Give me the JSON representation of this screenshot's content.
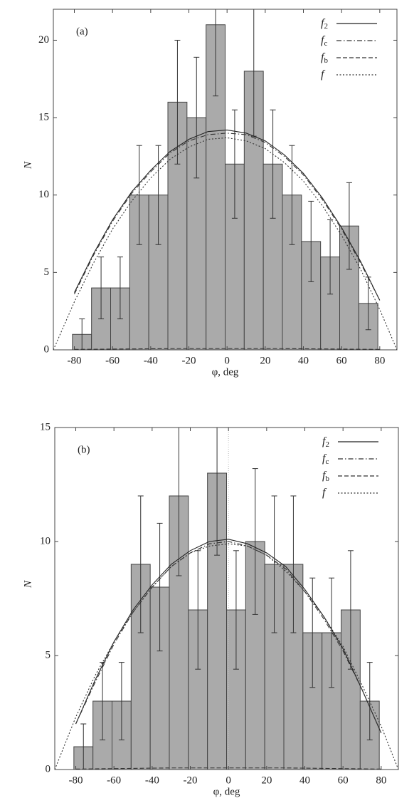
{
  "chart_data": [
    {
      "type": "histogram",
      "label": "(a)",
      "xlabel": "φ, deg",
      "ylabel": "N",
      "bins": [
        -81,
        -71,
        -61,
        -51,
        -41,
        -31,
        -21,
        -11,
        -1,
        9,
        19,
        29,
        39,
        49,
        59,
        69,
        79
      ],
      "values": [
        1,
        4,
        4,
        10,
        10,
        16,
        15,
        21,
        12,
        18,
        12,
        10,
        7,
        6,
        8,
        3
      ],
      "errors": [
        1.0,
        2.0,
        2.0,
        3.2,
        3.2,
        4.0,
        3.9,
        4.6,
        3.5,
        4.2,
        3.5,
        3.2,
        2.6,
        2.4,
        2.8,
        1.7
      ],
      "color": "#aaaaaa",
      "xlim": [
        -91,
        89
      ],
      "ylim": [
        0,
        22
      ],
      "xticks": [
        -80,
        -60,
        -40,
        -20,
        0,
        20,
        40,
        60,
        80
      ],
      "yticks": [
        0,
        5,
        10,
        15,
        20
      ],
      "legend": "upper right",
      "series": [
        {
          "name": "f2",
          "style": "solid",
          "color": "#222222",
          "x": [
            -80,
            -70,
            -60,
            -50,
            -40,
            -30,
            -20,
            -10,
            0,
            10,
            20,
            30,
            40,
            50,
            60,
            70,
            80
          ],
          "values": [
            3.7,
            6.2,
            8.4,
            10.2,
            11.6,
            12.8,
            13.6,
            14.1,
            14.2,
            14.0,
            13.5,
            12.6,
            11.4,
            9.8,
            7.9,
            5.7,
            3.2
          ]
        },
        {
          "name": "fc",
          "style": "dashdot",
          "color": "#333333",
          "x": [
            -80,
            -70,
            -60,
            -50,
            -40,
            -30,
            -20,
            -10,
            0,
            10,
            20,
            30,
            40,
            50,
            60,
            70,
            80
          ],
          "values": [
            3.6,
            6.1,
            8.3,
            10.1,
            11.5,
            12.7,
            13.5,
            13.9,
            14.0,
            13.9,
            13.4,
            12.5,
            11.3,
            9.7,
            7.8,
            5.6,
            3.2
          ]
        },
        {
          "name": "fb",
          "style": "dashed",
          "color": "#333333",
          "x": [
            -80,
            -70,
            -60,
            -50,
            -40,
            -30,
            -20,
            -10,
            0,
            10,
            20,
            30,
            40,
            50,
            60,
            70,
            80
          ],
          "values": [
            0.03,
            0.04,
            0.05,
            0.06,
            0.07,
            0.08,
            0.08,
            0.08,
            0.08,
            0.08,
            0.08,
            0.08,
            0.07,
            0.06,
            0.05,
            0.04,
            0.03
          ]
        },
        {
          "name": "f",
          "style": "dotted",
          "color": "#333333",
          "x": [
            -91,
            -80,
            -70,
            -60,
            -50,
            -40,
            -30,
            -20,
            -10,
            0,
            10,
            20,
            30,
            40,
            50,
            60,
            70,
            80,
            89
          ],
          "values": [
            0,
            3.1,
            5.6,
            7.8,
            9.6,
            11.1,
            12.3,
            13.1,
            13.6,
            13.7,
            13.5,
            13.0,
            12.1,
            10.9,
            9.3,
            7.4,
            5.2,
            2.6,
            0
          ]
        }
      ]
    },
    {
      "type": "histogram",
      "label": "(b)",
      "xlabel": "φ, deg",
      "ylabel": "N",
      "bins": [
        -81,
        -71,
        -61,
        -51,
        -41,
        -31,
        -21,
        -11,
        -1,
        9,
        19,
        29,
        39,
        49,
        59,
        69,
        79
      ],
      "values": [
        1,
        3,
        3,
        9,
        8,
        12,
        7,
        13,
        7,
        10,
        9,
        9,
        6,
        6,
        7,
        3
      ],
      "errors": [
        1.0,
        1.7,
        1.7,
        3.0,
        2.8,
        3.5,
        2.6,
        3.6,
        2.6,
        3.2,
        3.0,
        3.0,
        2.4,
        2.4,
        2.6,
        1.7
      ],
      "color": "#aaaaaa",
      "xlim": [
        -91,
        89
      ],
      "ylim": [
        0,
        15
      ],
      "xticks": [
        -80,
        -60,
        -40,
        -20,
        0,
        20,
        40,
        60,
        80
      ],
      "yticks": [
        0,
        5,
        10,
        15
      ],
      "legend": "upper right",
      "series": [
        {
          "name": "f2",
          "style": "solid",
          "color": "#222222",
          "x": [
            -80,
            -70,
            -60,
            -50,
            -40,
            -30,
            -20,
            -10,
            0,
            10,
            20,
            30,
            40,
            50,
            60,
            70,
            80
          ],
          "values": [
            2.0,
            3.9,
            5.6,
            7.0,
            8.1,
            9.0,
            9.6,
            10.0,
            10.1,
            9.9,
            9.5,
            8.9,
            7.9,
            6.7,
            5.3,
            3.5,
            1.6
          ]
        },
        {
          "name": "fc",
          "style": "dashdot",
          "color": "#333333",
          "x": [
            -80,
            -70,
            -60,
            -50,
            -40,
            -30,
            -20,
            -10,
            0,
            10,
            20,
            30,
            40,
            50,
            60,
            70,
            80
          ],
          "values": [
            2.0,
            3.8,
            5.5,
            6.9,
            8.0,
            8.9,
            9.5,
            9.9,
            10.0,
            9.8,
            9.4,
            8.8,
            7.8,
            6.6,
            5.2,
            3.5,
            1.6
          ]
        },
        {
          "name": "fb",
          "style": "dashed",
          "color": "#333333",
          "x": [
            -80,
            -70,
            -60,
            -50,
            -40,
            -30,
            -20,
            -10,
            0,
            10,
            20,
            30,
            40,
            50,
            60,
            70,
            80
          ],
          "values": [
            0.02,
            0.03,
            0.04,
            0.05,
            0.06,
            0.07,
            0.07,
            0.07,
            0.07,
            0.07,
            0.07,
            0.07,
            0.06,
            0.05,
            0.04,
            0.03,
            0.02
          ]
        },
        {
          "name": "f",
          "style": "dotted",
          "color": "#333333",
          "x": [
            -91,
            -80,
            -70,
            -60,
            -50,
            -40,
            -30,
            -20,
            -10,
            0,
            10,
            20,
            30,
            40,
            50,
            60,
            70,
            80,
            89
          ],
          "values": [
            0,
            2.3,
            4.1,
            5.6,
            6.9,
            8.0,
            8.9,
            9.5,
            9.8,
            9.9,
            9.8,
            9.4,
            8.7,
            7.8,
            6.7,
            5.4,
            3.7,
            1.9,
            0
          ]
        }
      ]
    }
  ]
}
